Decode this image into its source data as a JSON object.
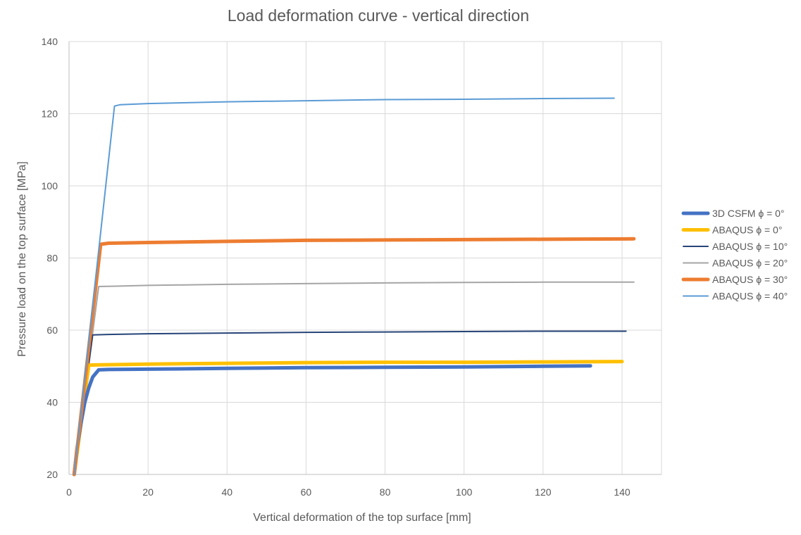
{
  "chart_data": {
    "type": "line",
    "title": "Load deformation curve - vertical direction",
    "xlabel": "Vertical deformation of the top surface [mm]",
    "ylabel": "Pressure load on the top surface [MPa]",
    "xlim": [
      0,
      150
    ],
    "ylim": [
      20,
      140
    ],
    "xticks": [
      0,
      20,
      40,
      60,
      80,
      100,
      120,
      140
    ],
    "yticks": [
      20,
      40,
      60,
      80,
      100,
      120,
      140
    ],
    "grid": true,
    "legend_position": "right",
    "series": [
      {
        "name": "3D CSFM ϕ = 0°",
        "color": "#4472C4",
        "weight": "thick",
        "x": [
          1.3,
          2,
          3,
          4,
          5,
          6,
          7.5,
          10,
          20,
          40,
          60,
          80,
          100,
          120,
          132
        ],
        "y": [
          20,
          27,
          34,
          40,
          44,
          47,
          49,
          49.1,
          49.2,
          49.4,
          49.6,
          49.7,
          49.8,
          50,
          50.1
        ]
      },
      {
        "name": "ABAQUS ϕ = 0°",
        "color": "#FFC000",
        "weight": "thick",
        "x": [
          1.3,
          5,
          8,
          20,
          40,
          60,
          80,
          100,
          120,
          140
        ],
        "y": [
          20,
          50.3,
          50.4,
          50.6,
          50.8,
          51,
          51.1,
          51.1,
          51.2,
          51.3
        ]
      },
      {
        "name": "ABAQUS ϕ = 10°",
        "color": "#264478",
        "weight": "medium",
        "x": [
          1.3,
          6,
          10,
          20,
          40,
          60,
          80,
          100,
          120,
          141
        ],
        "y": [
          20,
          58.7,
          58.8,
          59,
          59.2,
          59.4,
          59.5,
          59.6,
          59.7,
          59.7
        ]
      },
      {
        "name": "ABAQUS ϕ = 20°",
        "color": "#A5A5A5",
        "weight": "medium",
        "x": [
          1.3,
          7.5,
          12,
          20,
          40,
          60,
          80,
          100,
          120,
          143
        ],
        "y": [
          20,
          72.1,
          72.2,
          72.4,
          72.7,
          72.9,
          73.1,
          73.2,
          73.3,
          73.3
        ]
      },
      {
        "name": "ABAQUS ϕ = 30°",
        "color": "#ED7D31",
        "weight": "thick",
        "x": [
          1.3,
          8,
          10,
          20,
          40,
          60,
          80,
          100,
          120,
          143
        ],
        "y": [
          20,
          83.8,
          84.1,
          84.3,
          84.6,
          84.9,
          85,
          85.1,
          85.2,
          85.3
        ]
      },
      {
        "name": "ABAQUS ϕ = 40°",
        "color": "#5B9BD5",
        "weight": "medium",
        "x": [
          1.3,
          11.5,
          13,
          20,
          40,
          60,
          80,
          100,
          120,
          138
        ],
        "y": [
          20,
          122.1,
          122.5,
          122.8,
          123.3,
          123.6,
          123.9,
          124,
          124.2,
          124.3
        ]
      }
    ]
  }
}
